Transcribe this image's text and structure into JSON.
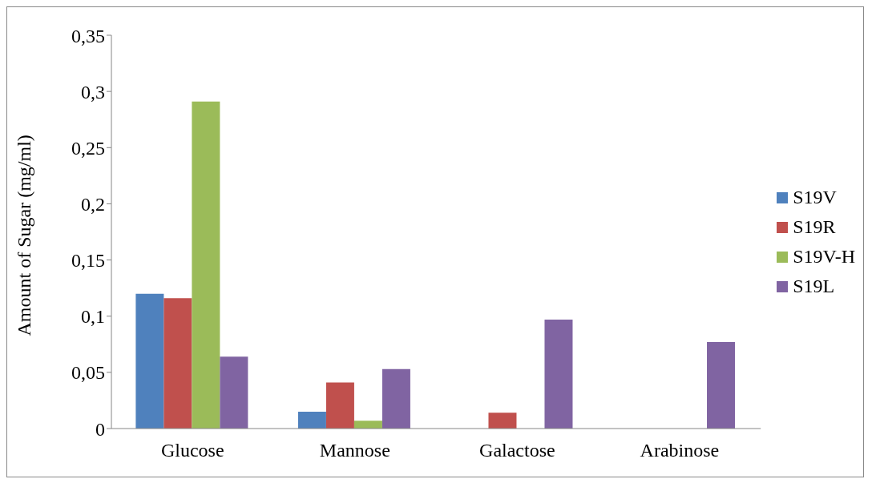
{
  "chart_data": {
    "type": "bar",
    "ylabel": "Amount of Sugar (mg/ml)",
    "categories": [
      "Glucose",
      "Mannose",
      "Galactose",
      "Arabinose"
    ],
    "series": [
      {
        "name": "S19V",
        "color": "#4f81bd",
        "values": [
          0.12,
          0.015,
          0,
          0
        ]
      },
      {
        "name": "S19R",
        "color": "#c0504d",
        "values": [
          0.116,
          0.041,
          0.014,
          0
        ]
      },
      {
        "name": "S19V-H",
        "color": "#9bbb59",
        "values": [
          0.291,
          0.007,
          0,
          0
        ]
      },
      {
        "name": "S19L",
        "color": "#8064a2",
        "values": [
          0.064,
          0.053,
          0.097,
          0.077
        ]
      }
    ],
    "ylim": [
      0,
      0.35
    ],
    "yticks": [
      {
        "value": 0,
        "label": "0"
      },
      {
        "value": 0.05,
        "label": "0,05"
      },
      {
        "value": 0.1,
        "label": "0,1"
      },
      {
        "value": 0.15,
        "label": "0,15"
      },
      {
        "value": 0.2,
        "label": "0,2"
      },
      {
        "value": 0.25,
        "label": "0,25"
      },
      {
        "value": 0.3,
        "label": "0,3"
      },
      {
        "value": 0.35,
        "label": "0,35"
      }
    ],
    "grid": false,
    "legend": "right"
  }
}
